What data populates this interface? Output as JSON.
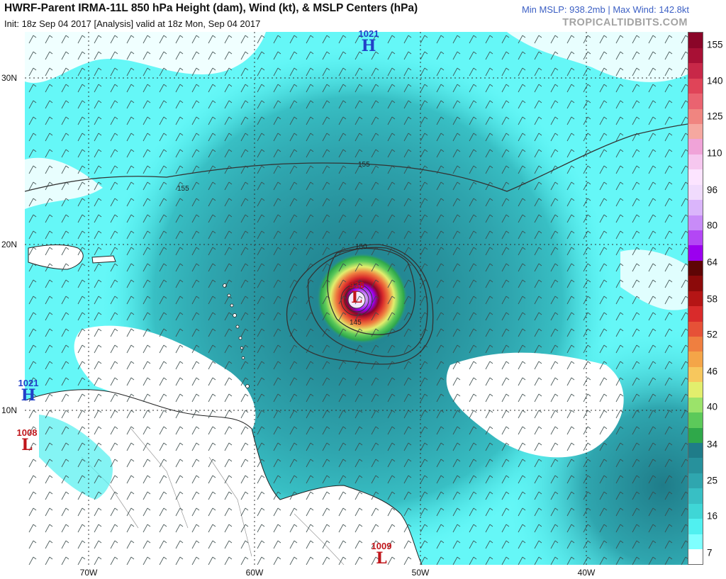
{
  "header": {
    "title": "HWRF-Parent IRMA-11L 850 hPa Height (dam), Wind (kt), & MSLP Centers (hPa)",
    "init_line": "Init: 18z Sep 04 2017   [Analysis]   valid at 18z Mon, Sep 04 2017",
    "stats": "Min MSLP: 938.2mb  |  Max Wind: 142.8kt",
    "site": "TROPICALTIDBITS.COM"
  },
  "axes": {
    "lat_labels": [
      "30N",
      "20N",
      "10N"
    ],
    "lon_labels": [
      "70W",
      "60W",
      "50W",
      "40W"
    ]
  },
  "contours": [
    "155",
    "155",
    "150",
    "145"
  ],
  "pressure_centers": [
    {
      "pressure": "1021",
      "symbol": "H",
      "kind": "high"
    },
    {
      "pressure": "1021",
      "symbol": "H",
      "kind": "high"
    },
    {
      "pressure": "1008",
      "symbol": "L",
      "kind": "low"
    },
    {
      "pressure": "938",
      "symbol": "L",
      "kind": "low"
    },
    {
      "pressure": "1009",
      "symbol": "L",
      "kind": "low"
    }
  ],
  "colorbar": {
    "labels": [
      "155",
      "140",
      "125",
      "110",
      "96",
      "80",
      "64",
      "58",
      "52",
      "46",
      "40",
      "34",
      "25",
      "16",
      "7"
    ],
    "colors": [
      "#ffffff",
      "#7fffff",
      "#50f0f0",
      "#3fd6d6",
      "#38bfc4",
      "#2fa6af",
      "#27919c",
      "#1f7c89",
      "#2fa84a",
      "#5cc95a",
      "#9be36a",
      "#e2ee6d",
      "#f7c75d",
      "#f4a548",
      "#ef7f40",
      "#e65137",
      "#d92b2b",
      "#b51515",
      "#8c0a0a",
      "#5e0505",
      "#9b00ef",
      "#b347f5",
      "#c88bf8",
      "#dab5fb",
      "#f0dbfd",
      "#fce4ff",
      "#f6c7ef",
      "#f0a3d8",
      "#f5a8a0",
      "#f08580",
      "#ea6370",
      "#e04458",
      "#c82848",
      "#a81035",
      "#8a0528"
    ]
  }
}
